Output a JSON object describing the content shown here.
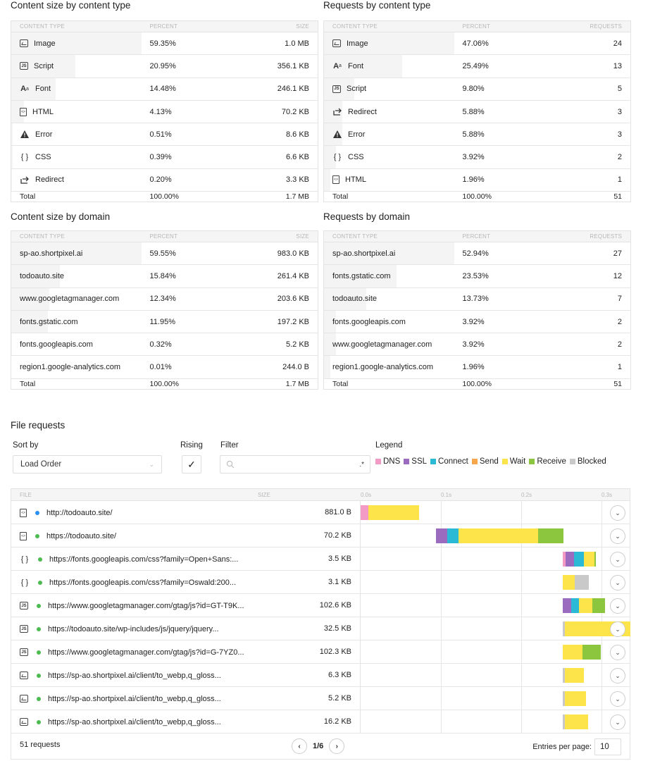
{
  "colors": {
    "dns": "#f39bc5",
    "ssl": "#9b6bbf",
    "connect": "#2bbad6",
    "send": "#f7a64b",
    "wait": "#fde44a",
    "receive": "#8cc63f",
    "blocked": "#c9c9c9",
    "dot_blue": "#2a8ff2",
    "dot_green": "#4cbb50"
  },
  "size_by_type": {
    "title": "Content size by content type",
    "headers": [
      "CONTENT TYPE",
      "PERCENT",
      "SIZE"
    ],
    "rows": [
      {
        "icon": "image-icon",
        "label": "Image",
        "percent": "59.35%",
        "value": "1.0 MB",
        "share": 59.35
      },
      {
        "icon": "script-icon",
        "label": "Script",
        "percent": "20.95%",
        "value": "356.1 KB",
        "share": 20.95
      },
      {
        "icon": "font-icon",
        "label": "Font",
        "percent": "14.48%",
        "value": "246.1 KB",
        "share": 14.48
      },
      {
        "icon": "html-icon",
        "label": "HTML",
        "percent": "4.13%",
        "value": "70.2 KB",
        "share": 4.13
      },
      {
        "icon": "error-icon",
        "label": "Error",
        "percent": "0.51%",
        "value": "8.6 KB",
        "share": 0.51
      },
      {
        "icon": "css-icon",
        "label": "CSS",
        "percent": "0.39%",
        "value": "6.6 KB",
        "share": 0.39
      },
      {
        "icon": "redirect-icon",
        "label": "Redirect",
        "percent": "0.20%",
        "value": "3.3 KB",
        "share": 0.2
      }
    ],
    "total": {
      "label": "Total",
      "percent": "100.00%",
      "value": "1.7 MB"
    }
  },
  "requests_by_type": {
    "title": "Requests by content type",
    "headers": [
      "CONTENT TYPE",
      "PERCENT",
      "REQUESTS"
    ],
    "rows": [
      {
        "icon": "image-icon",
        "label": "Image",
        "percent": "47.06%",
        "value": "24",
        "share": 47.06
      },
      {
        "icon": "font-icon",
        "label": "Font",
        "percent": "25.49%",
        "value": "13",
        "share": 25.49
      },
      {
        "icon": "script-icon",
        "label": "Script",
        "percent": "9.80%",
        "value": "5",
        "share": 9.8
      },
      {
        "icon": "redirect-icon",
        "label": "Redirect",
        "percent": "5.88%",
        "value": "3",
        "share": 5.88
      },
      {
        "icon": "error-icon",
        "label": "Error",
        "percent": "5.88%",
        "value": "3",
        "share": 5.88
      },
      {
        "icon": "css-icon",
        "label": "CSS",
        "percent": "3.92%",
        "value": "2",
        "share": 3.92
      },
      {
        "icon": "html-icon",
        "label": "HTML",
        "percent": "1.96%",
        "value": "1",
        "share": 1.96
      }
    ],
    "total": {
      "label": "Total",
      "percent": "100.00%",
      "value": "51"
    }
  },
  "size_by_domain": {
    "title": "Content size by domain",
    "headers": [
      "CONTENT TYPE",
      "PERCENT",
      "SIZE"
    ],
    "rows": [
      {
        "label": "sp-ao.shortpixel.ai",
        "percent": "59.55%",
        "value": "983.0 KB",
        "share": 59.55
      },
      {
        "label": "todoauto.site",
        "percent": "15.84%",
        "value": "261.4 KB",
        "share": 15.84
      },
      {
        "label": "www.googletagmanager.com",
        "percent": "12.34%",
        "value": "203.6 KB",
        "share": 12.34
      },
      {
        "label": "fonts.gstatic.com",
        "percent": "11.95%",
        "value": "197.2 KB",
        "share": 11.95
      },
      {
        "label": "fonts.googleapis.com",
        "percent": "0.32%",
        "value": "5.2 KB",
        "share": 0.32
      },
      {
        "label": "region1.google-analytics.com",
        "percent": "0.01%",
        "value": "244.0 B",
        "share": 0.01
      }
    ],
    "total": {
      "label": "Total",
      "percent": "100.00%",
      "value": "1.7 MB"
    }
  },
  "requests_by_domain": {
    "title": "Requests by domain",
    "headers": [
      "CONTENT TYPE",
      "PERCENT",
      "REQUESTS"
    ],
    "rows": [
      {
        "label": "sp-ao.shortpixel.ai",
        "percent": "52.94%",
        "value": "27",
        "share": 52.94
      },
      {
        "label": "fonts.gstatic.com",
        "percent": "23.53%",
        "value": "12",
        "share": 23.53
      },
      {
        "label": "todoauto.site",
        "percent": "13.73%",
        "value": "7",
        "share": 13.73
      },
      {
        "label": "fonts.googleapis.com",
        "percent": "3.92%",
        "value": "2",
        "share": 3.92
      },
      {
        "label": "www.googletagmanager.com",
        "percent": "3.92%",
        "value": "2",
        "share": 3.92
      },
      {
        "label": "region1.google-analytics.com",
        "percent": "1.96%",
        "value": "1",
        "share": 1.96
      }
    ],
    "total": {
      "label": "Total",
      "percent": "100.00%",
      "value": "51"
    }
  },
  "file_requests": {
    "title": "File requests",
    "sort_by_label": "Sort by",
    "sort_value": "Load Order",
    "rising_label": "Rising",
    "filter_label": "Filter",
    "filter_regex": ".*",
    "legend_label": "Legend",
    "legend": [
      {
        "key": "dns",
        "label": "DNS"
      },
      {
        "key": "ssl",
        "label": "SSL"
      },
      {
        "key": "connect",
        "label": "Connect"
      },
      {
        "key": "send",
        "label": "Send"
      },
      {
        "key": "wait",
        "label": "Wait"
      },
      {
        "key": "receive",
        "label": "Receive"
      },
      {
        "key": "blocked",
        "label": "Blocked"
      }
    ],
    "headers": {
      "file": "FILE",
      "size": "SIZE"
    },
    "ticks": [
      "0.0s",
      "0.1s",
      "0.2s",
      "0.3s"
    ],
    "rows": [
      {
        "icon": "html-icon",
        "status": "blue",
        "url": "http://todoauto.site/",
        "size": "881.0 B",
        "timing": [
          [
            "dns",
            0.0,
            0.01
          ],
          [
            "wait",
            0.01,
            0.073
          ]
        ]
      },
      {
        "icon": "html-icon",
        "status": "green",
        "url": "https://todoauto.site/",
        "size": "70.2 KB",
        "timing": [
          [
            "ssl",
            0.094,
            0.108
          ],
          [
            "connect",
            0.108,
            0.122
          ],
          [
            "wait",
            0.122,
            0.221
          ],
          [
            "receive",
            0.221,
            0.253
          ]
        ]
      },
      {
        "icon": "css-icon",
        "status": "green",
        "url": "https://fonts.googleapis.com/css?family=Open+Sans:...",
        "size": "3.5 KB",
        "timing": [
          [
            "dns",
            0.252,
            0.255
          ],
          [
            "ssl",
            0.255,
            0.266
          ],
          [
            "connect",
            0.266,
            0.278
          ],
          [
            "wait",
            0.278,
            0.291
          ],
          [
            "receive",
            0.291,
            0.293
          ]
        ]
      },
      {
        "icon": "css-icon",
        "status": "green",
        "url": "https://fonts.googleapis.com/css?family=Oswald:200...",
        "size": "3.1 KB",
        "timing": [
          [
            "wait",
            0.252,
            0.267
          ],
          [
            "blocked",
            0.267,
            0.284
          ]
        ]
      },
      {
        "icon": "script-icon",
        "status": "green",
        "url": "https://www.googletagmanager.com/gtag/js?id=GT-T9K...",
        "size": "102.6 KB",
        "timing": [
          [
            "ssl",
            0.252,
            0.262
          ],
          [
            "connect",
            0.262,
            0.272
          ],
          [
            "wait",
            0.272,
            0.289
          ],
          [
            "receive",
            0.289,
            0.304
          ]
        ]
      },
      {
        "icon": "script-icon",
        "status": "green",
        "url": "https://todoauto.site/wp-includes/js/jquery/jquery...",
        "size": "32.5 KB",
        "timing": [
          [
            "blocked",
            0.252,
            0.254
          ],
          [
            "wait",
            0.254,
            0.336
          ]
        ]
      },
      {
        "icon": "script-icon",
        "status": "green",
        "url": "https://www.googletagmanager.com/gtag/js?id=G-7YZ0...",
        "size": "102.3 KB",
        "timing": [
          [
            "wait",
            0.252,
            0.276
          ],
          [
            "receive",
            0.276,
            0.299
          ]
        ]
      },
      {
        "icon": "image-icon",
        "status": "green",
        "url": "https://sp-ao.shortpixel.ai/client/to_webp,q_gloss...",
        "size": "6.3 KB",
        "timing": [
          [
            "blocked",
            0.252,
            0.254
          ],
          [
            "wait",
            0.254,
            0.278
          ]
        ]
      },
      {
        "icon": "image-icon",
        "status": "green",
        "url": "https://sp-ao.shortpixel.ai/client/to_webp,q_gloss...",
        "size": "5.2 KB",
        "timing": [
          [
            "blocked",
            0.252,
            0.254
          ],
          [
            "wait",
            0.254,
            0.281
          ]
        ]
      },
      {
        "icon": "image-icon",
        "status": "green",
        "url": "https://sp-ao.shortpixel.ai/client/to_webp,q_gloss...",
        "size": "16.2 KB",
        "timing": [
          [
            "blocked",
            0.252,
            0.254
          ],
          [
            "wait",
            0.254,
            0.283
          ]
        ]
      }
    ],
    "request_count": "51 requests",
    "page": "1/6",
    "entries_label": "Entries per page:",
    "entries_value": "10"
  }
}
